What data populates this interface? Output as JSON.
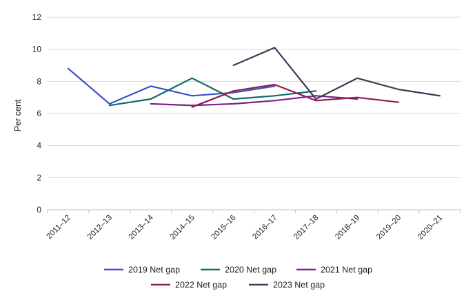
{
  "chart_data": {
    "type": "line",
    "title": "",
    "xlabel": "",
    "ylabel": "Per cent",
    "ylim": [
      0,
      12
    ],
    "yticks": [
      0,
      2,
      4,
      6,
      8,
      10,
      12
    ],
    "grid": "horizontal",
    "legend_position": "bottom",
    "categories": [
      "2011–12",
      "2012–13",
      "2013–14",
      "2014–15",
      "2015–16",
      "2016–17",
      "2017–18",
      "2018–19",
      "2019–20",
      "2020–21"
    ],
    "series": [
      {
        "name": "2019 Net gap",
        "color": "#3b4fc9",
        "values": [
          8.8,
          6.6,
          7.7,
          7.1,
          7.3,
          7.7,
          null,
          null,
          null,
          null
        ]
      },
      {
        "name": "2020 Net gap",
        "color": "#0d6b6b",
        "values": [
          null,
          6.5,
          6.9,
          8.2,
          6.9,
          7.1,
          7.4,
          null,
          null,
          null
        ]
      },
      {
        "name": "2021 Net gap",
        "color": "#7d1e8f",
        "values": [
          null,
          null,
          6.6,
          6.5,
          6.6,
          6.8,
          7.1,
          6.9,
          null,
          null
        ]
      },
      {
        "name": "2022 Net gap",
        "color": "#8c1c4a",
        "values": [
          null,
          null,
          null,
          6.4,
          7.4,
          7.8,
          6.8,
          7.0,
          6.7,
          null
        ]
      },
      {
        "name": "2023 Net gap",
        "color": "#3c3a52",
        "values": [
          null,
          null,
          null,
          null,
          9.0,
          10.1,
          6.9,
          8.2,
          7.5,
          7.1
        ]
      }
    ]
  }
}
